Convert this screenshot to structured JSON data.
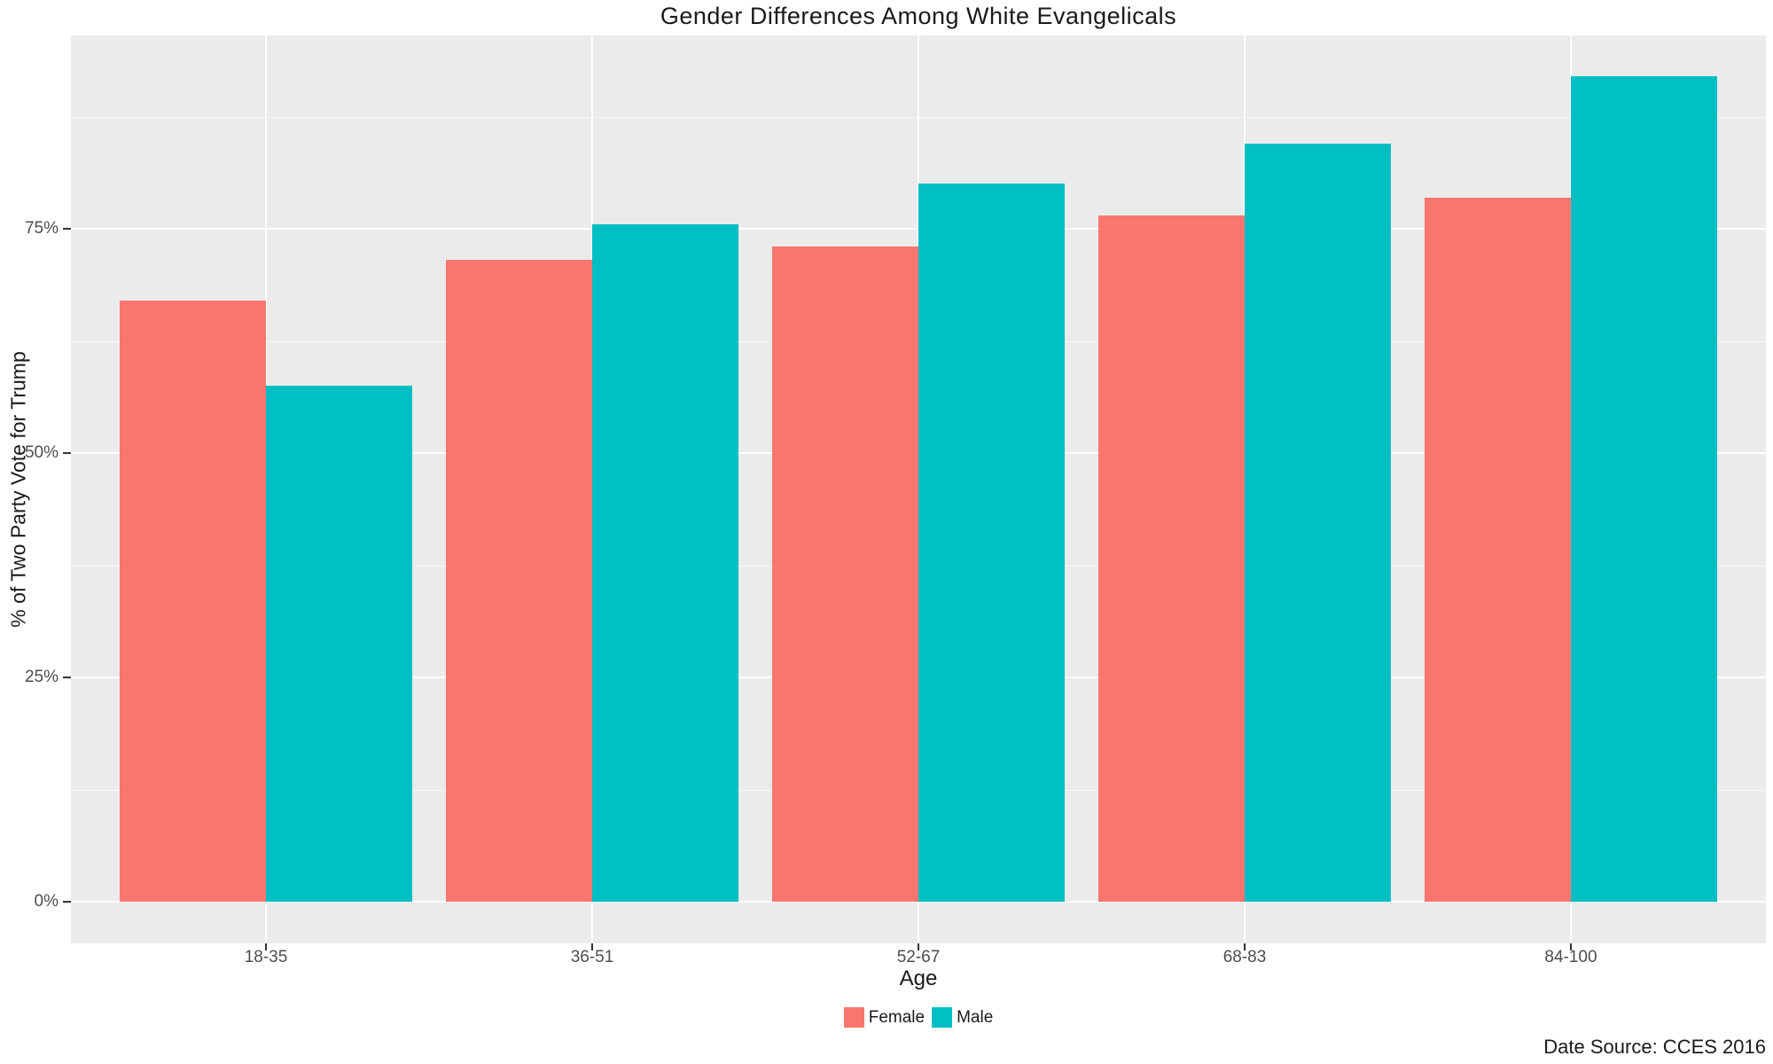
{
  "title": "Gender Differences Among White Evangelicals",
  "caption": "Date Source: CCES 2016",
  "colors": {
    "female": "#F8766D",
    "male": "#00BFC4",
    "panel_background": "#EBEBEB",
    "gridline": "#FFFFFF",
    "tick_text": "#4D4D4D"
  },
  "chart_data": {
    "type": "bar",
    "title": "Gender Differences Among White Evangelicals",
    "xlabel": "Age",
    "ylabel": "% of Two Party Vote for Trump",
    "categories": [
      "18-35",
      "36-51",
      "52-67",
      "68-83",
      "84-100"
    ],
    "series": [
      {
        "name": "Female",
        "color": "#F8766D",
        "values": [
          67,
          71.5,
          73,
          76.5,
          78.5
        ]
      },
      {
        "name": "Male",
        "color": "#00BFC4",
        "values": [
          57.5,
          75.5,
          80,
          84.5,
          92
        ]
      }
    ],
    "y_ticks": [
      0,
      25,
      50,
      75
    ],
    "y_tick_labels": [
      "0%",
      "25%",
      "50%",
      "75%"
    ],
    "y_minor_ticks": [
      12.5,
      37.5,
      62.5,
      87.5
    ],
    "ylim": [
      -4.5,
      97
    ],
    "grid": true,
    "legend_position": "bottom-center"
  }
}
